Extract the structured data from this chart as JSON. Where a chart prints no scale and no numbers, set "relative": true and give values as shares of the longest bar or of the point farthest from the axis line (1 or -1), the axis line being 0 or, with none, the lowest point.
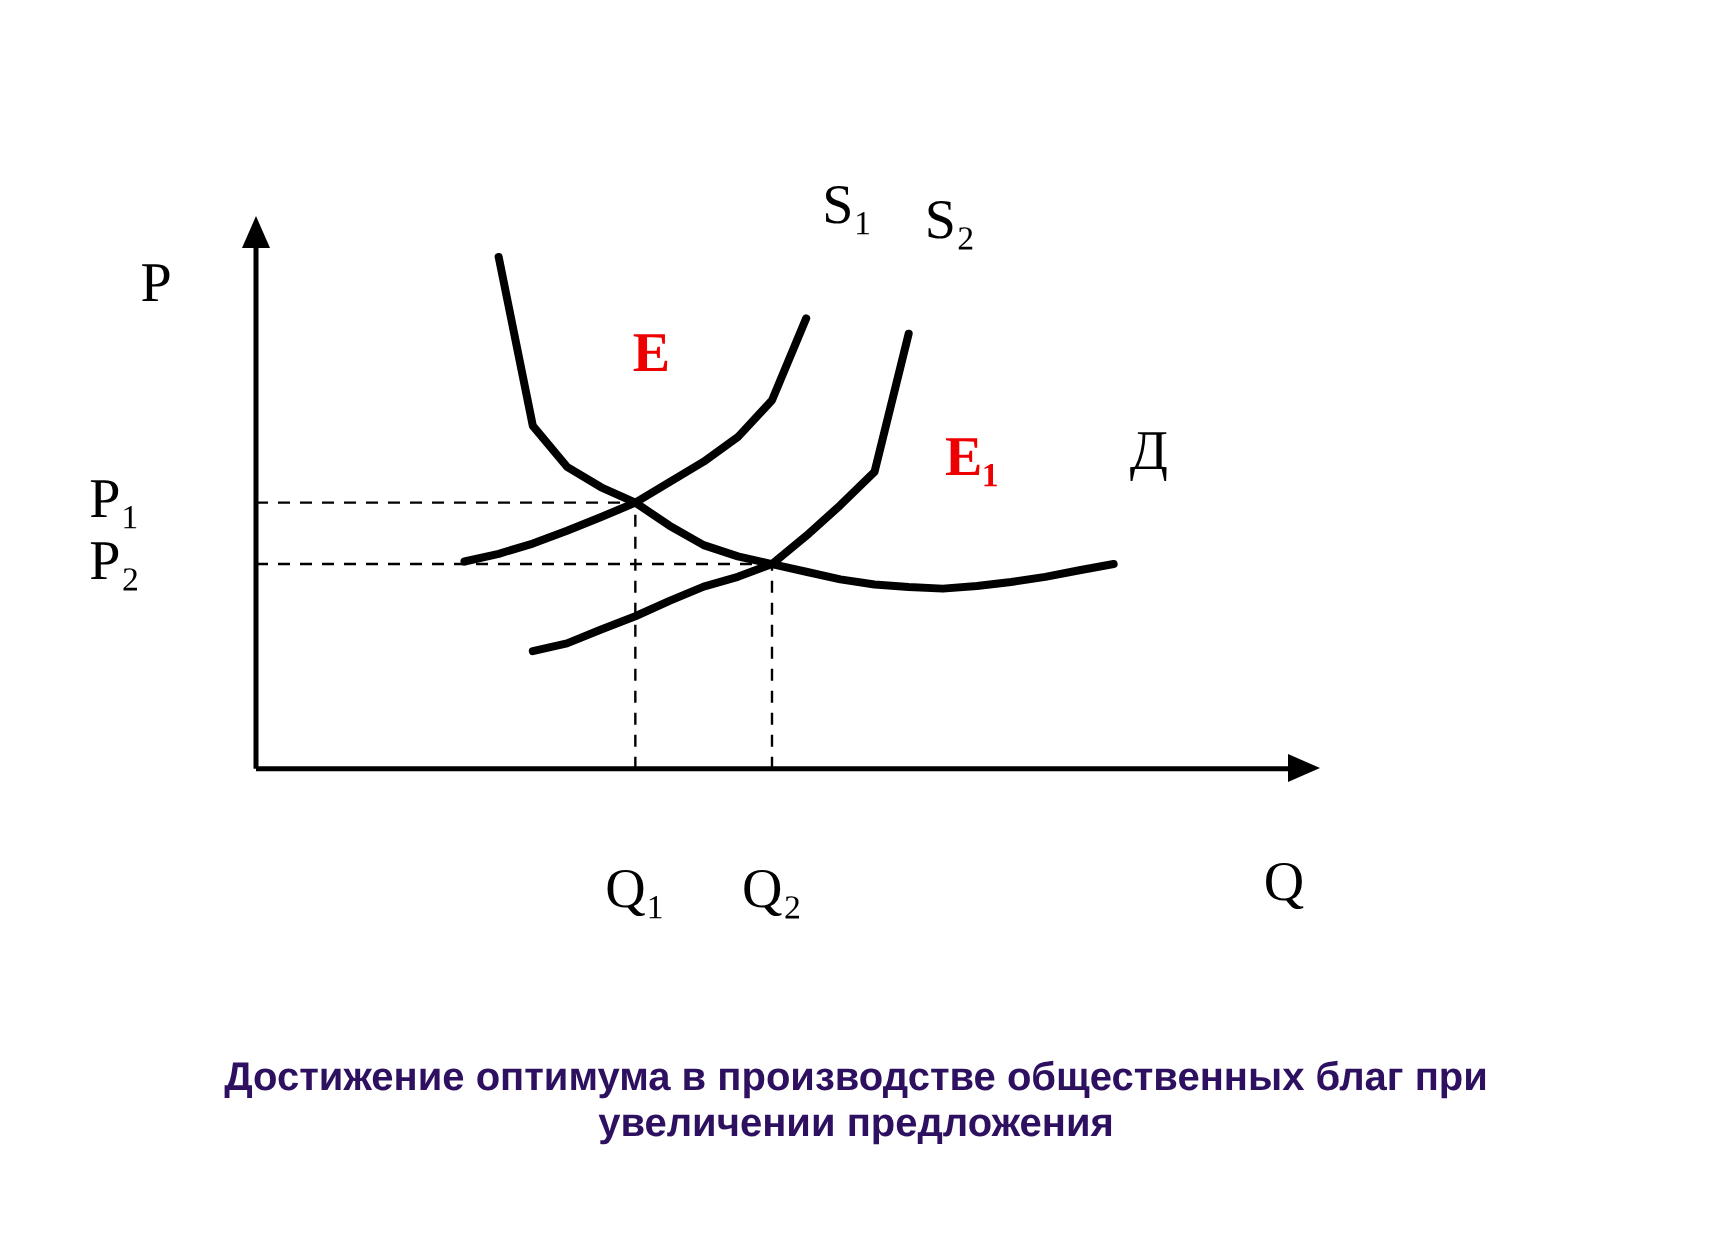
{
  "chart_data": {
    "type": "line",
    "relative": true,
    "xlabel": "Q",
    "ylabel": "P",
    "title": "Достижение оптимума в производстве общественных благ при увеличении предложения",
    "grid": false,
    "legend": false,
    "marker": "none",
    "line_style": "solid",
    "categories": [
      null,
      null,
      null,
      null,
      null,
      null,
      "Q₁",
      null,
      null,
      null,
      "Q₂",
      null,
      null,
      null,
      null,
      null,
      null,
      null,
      null,
      null,
      null
    ],
    "series": [
      {
        "name": "S₁",
        "color": "#000000",
        "values": [
          null,
          0.405,
          0.42,
          0.44,
          0.465,
          0.492,
          0.52,
          0.56,
          0.6,
          0.648,
          0.72,
          0.88,
          null,
          null,
          null,
          null,
          null,
          null,
          null,
          null,
          null
        ]
      },
      {
        "name": "S₂",
        "color": "#000000",
        "values": [
          null,
          null,
          null,
          0.23,
          0.245,
          0.272,
          0.298,
          0.328,
          0.356,
          0.375,
          0.4,
          0.455,
          0.515,
          0.58,
          0.85,
          null,
          null,
          null,
          null,
          null,
          null
        ]
      },
      {
        "name": "Д",
        "color": "#000000",
        "values": [
          null,
          null,
          1.0,
          0.67,
          0.59,
          0.55,
          0.52,
          0.475,
          0.437,
          0.415,
          0.4,
          0.385,
          0.37,
          0.36,
          0.355,
          0.352,
          0.357,
          0.365,
          0.375,
          0.388,
          0.4
        ]
      }
    ],
    "ref_lines": [
      {
        "axis": "y",
        "value": 0.52,
        "label": "P₁",
        "line_style": "dashed"
      },
      {
        "axis": "y",
        "value": 0.4,
        "label": "P₂",
        "line_style": "dashed"
      },
      {
        "axis": "x",
        "value": "Q₁",
        "line_style": "dashed"
      },
      {
        "axis": "x",
        "value": "Q₂",
        "line_style": "dashed"
      }
    ],
    "annotations": [
      "E",
      "E₁"
    ]
  }
}
